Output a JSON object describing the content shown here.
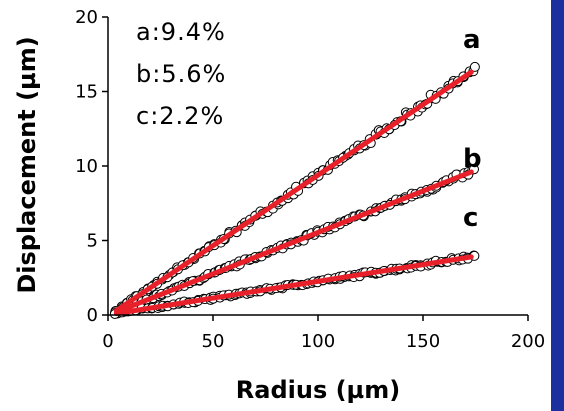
{
  "colors": {
    "fit_line": "#e8202a",
    "markers": "#000000",
    "edge_bar": "#1c2f9e"
  },
  "chart_data": {
    "type": "scatter",
    "xlabel": "Radius (µm)",
    "ylabel": "Displacement (µm)",
    "xlim": [
      0,
      200
    ],
    "ylim": [
      0,
      20
    ],
    "x_ticks": [
      "0",
      "50",
      "100",
      "150",
      "200"
    ],
    "y_ticks": [
      "0",
      "5",
      "10",
      "15",
      "20"
    ],
    "grid": false,
    "annotations": [
      "a:9.4%",
      "b:5.6%",
      "c:2.2%"
    ],
    "series": [
      {
        "name": "a",
        "fit": {
          "x": [
            4,
            173
          ],
          "y": [
            0.3,
            16.3
          ]
        },
        "x_range": [
          4,
          174
        ]
      },
      {
        "name": "b",
        "fit": {
          "x": [
            4,
            173
          ],
          "y": [
            0.2,
            9.6
          ]
        },
        "x_range": [
          4,
          174
        ]
      },
      {
        "name": "c",
        "fit": {
          "x": [
            4,
            173
          ],
          "y": [
            0.1,
            3.9
          ]
        },
        "x_range": [
          4,
          174
        ]
      }
    ]
  }
}
